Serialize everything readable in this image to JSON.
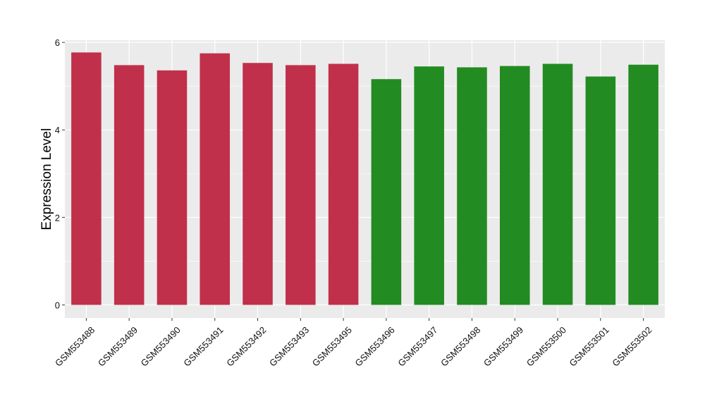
{
  "chart_data": {
    "type": "bar",
    "title": "",
    "xlabel": "",
    "ylabel": "Expression Level",
    "ylim": [
      -0.3,
      6.05
    ],
    "yticks": [
      0,
      2,
      4,
      6
    ],
    "grid": true,
    "legend": "none",
    "panel_background": "#EBEBEB",
    "categories": [
      "GSM553488",
      "GSM553489",
      "GSM553490",
      "GSM553491",
      "GSM553492",
      "GSM553493",
      "GSM553495",
      "GSM553496",
      "GSM553497",
      "GSM553498",
      "GSM553499",
      "GSM553500",
      "GSM553501",
      "GSM553502"
    ],
    "values": [
      5.77,
      5.48,
      5.36,
      5.75,
      5.53,
      5.48,
      5.51,
      5.16,
      5.45,
      5.43,
      5.46,
      5.51,
      5.22,
      5.49
    ],
    "groups": [
      "a",
      "a",
      "a",
      "a",
      "a",
      "a",
      "a",
      "b",
      "b",
      "b",
      "b",
      "b",
      "b",
      "b"
    ],
    "group_colors": {
      "a": "#C0304A",
      "b": "#228B22"
    }
  }
}
